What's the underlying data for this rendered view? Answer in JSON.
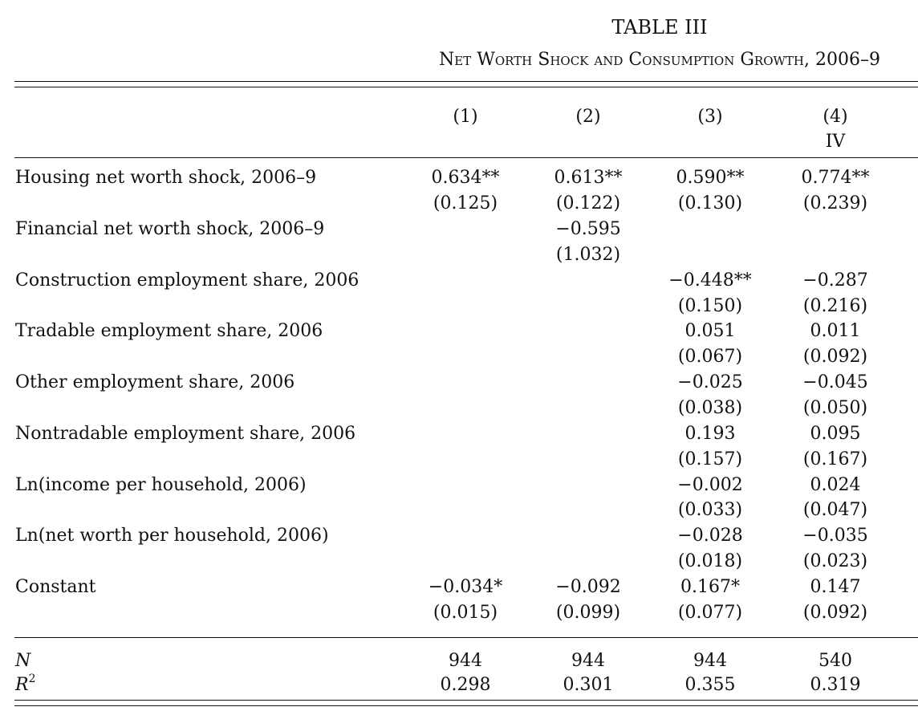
{
  "table": {
    "title": "TABLE III",
    "subtitle": "Net Worth Shock and Consumption Growth, 2006–9",
    "columns": [
      {
        "number": "(1)",
        "sub": ""
      },
      {
        "number": "(2)",
        "sub": ""
      },
      {
        "number": "(3)",
        "sub": ""
      },
      {
        "number": "(4)",
        "sub": "IV"
      }
    ],
    "rows": [
      {
        "label": "Housing net worth shock, 2006–9",
        "coef": [
          "0.634**",
          "0.613**",
          "0.590**",
          "0.774**"
        ],
        "se": [
          "(0.125)",
          "(0.122)",
          "(0.130)",
          "(0.239)"
        ]
      },
      {
        "label": "Financial net worth shock, 2006–9",
        "coef": [
          "",
          "−0.595",
          "",
          ""
        ],
        "se": [
          "",
          "(1.032)",
          "",
          ""
        ]
      },
      {
        "label": "Construction employment share, 2006",
        "coef": [
          "",
          "",
          "−0.448**",
          "−0.287"
        ],
        "se": [
          "",
          "",
          "(0.150)",
          "(0.216)"
        ]
      },
      {
        "label": "Tradable employment share, 2006",
        "coef": [
          "",
          "",
          "0.051",
          "0.011"
        ],
        "se": [
          "",
          "",
          "(0.067)",
          "(0.092)"
        ]
      },
      {
        "label": "Other employment share, 2006",
        "coef": [
          "",
          "",
          "−0.025",
          "−0.045"
        ],
        "se": [
          "",
          "",
          "(0.038)",
          "(0.050)"
        ]
      },
      {
        "label": "Nontradable employment share, 2006",
        "coef": [
          "",
          "",
          "0.193",
          "0.095"
        ],
        "se": [
          "",
          "",
          "(0.157)",
          "(0.167)"
        ]
      },
      {
        "label": "Ln(income per household, 2006)",
        "coef": [
          "",
          "",
          "−0.002",
          "0.024"
        ],
        "se": [
          "",
          "",
          "(0.033)",
          "(0.047)"
        ]
      },
      {
        "label": "Ln(net worth per household, 2006)",
        "coef": [
          "",
          "",
          "−0.028",
          "−0.035"
        ],
        "se": [
          "",
          "",
          "(0.018)",
          "(0.023)"
        ]
      },
      {
        "label": "Constant",
        "coef": [
          "−0.034*",
          "−0.092",
          "0.167*",
          "0.147"
        ],
        "se": [
          "(0.015)",
          "(0.099)",
          "(0.077)",
          "(0.092)"
        ]
      }
    ],
    "stats": [
      {
        "label": "N",
        "superscript": "",
        "values": [
          "944",
          "944",
          "944",
          "540"
        ]
      },
      {
        "label": "R",
        "superscript": "2",
        "values": [
          "0.298",
          "0.301",
          "0.355",
          "0.319"
        ]
      }
    ]
  }
}
